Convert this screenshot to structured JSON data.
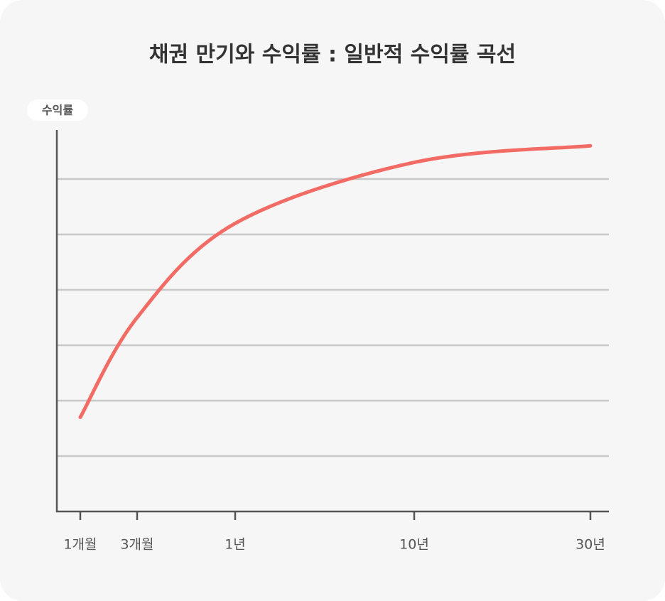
{
  "chart_data": {
    "type": "line",
    "title": "채권 만기와 수익률 : 일반적 수익률 곡선",
    "y_label": "수익률",
    "categories": [
      "1개월",
      "3개월",
      "1년",
      "10년",
      "30년"
    ],
    "series": [
      {
        "name": "수익률",
        "color": "#f26b64",
        "values": [
          1.7,
          3.5,
          5.2,
          6.3,
          6.6
        ]
      }
    ],
    "ylim": [
      0,
      7
    ],
    "yticks": [
      1,
      2,
      3,
      4,
      5,
      6
    ],
    "grid": true
  }
}
